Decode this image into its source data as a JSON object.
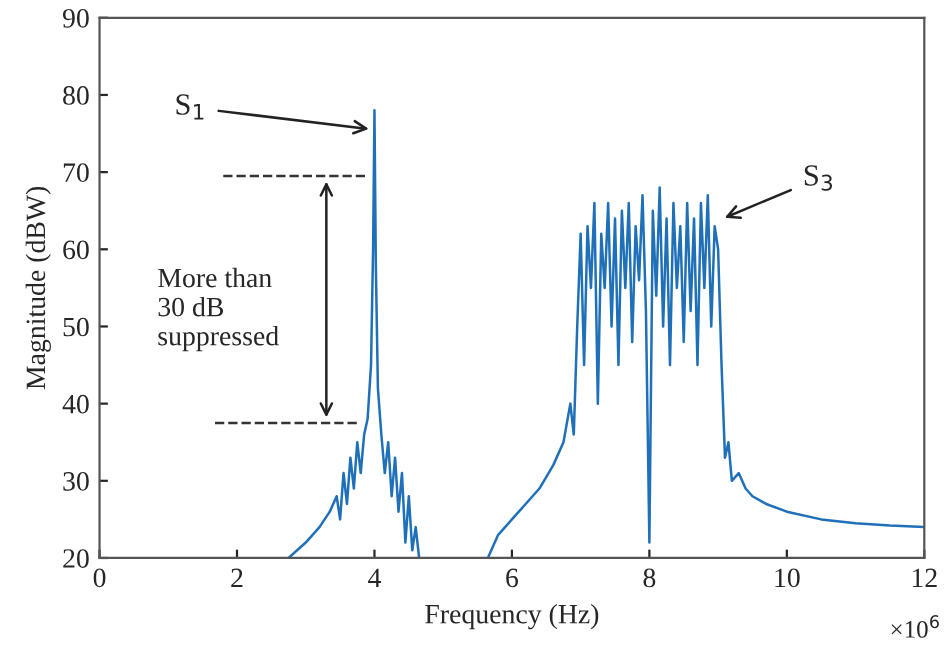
{
  "chart_data": {
    "type": "line",
    "xlabel": "Frequency (Hz)",
    "ylabel": "Magnitude (dBW)",
    "xlim": [
      0,
      12
    ],
    "xticks": [
      0,
      2,
      4,
      6,
      8,
      10,
      12
    ],
    "ylim": [
      20,
      90
    ],
    "yticks": [
      20,
      30,
      40,
      50,
      60,
      70,
      80,
      90
    ],
    "grid": false,
    "series": [
      {
        "color": "#1f70b8",
        "x": [
          2.75,
          3.0,
          3.2,
          3.35,
          3.45,
          3.5,
          3.55,
          3.6,
          3.65,
          3.7,
          3.75,
          3.8,
          3.85,
          3.9,
          3.95,
          3.98,
          4.0,
          4.02,
          4.05,
          4.1,
          4.15,
          4.2,
          4.25,
          4.3,
          4.35,
          4.4,
          4.45,
          4.5,
          4.55,
          4.6,
          4.65,
          5.0,
          5.65,
          5.8,
          6.0,
          6.2,
          6.4,
          6.6,
          6.75,
          6.85,
          6.9,
          6.95,
          7.0,
          7.05,
          7.1,
          7.15,
          7.2,
          7.25,
          7.3,
          7.35,
          7.4,
          7.45,
          7.5,
          7.55,
          7.6,
          7.65,
          7.7,
          7.75,
          7.8,
          7.85,
          7.9,
          7.95,
          8.0,
          8.05,
          8.1,
          8.15,
          8.2,
          8.25,
          8.3,
          8.35,
          8.4,
          8.45,
          8.5,
          8.55,
          8.6,
          8.65,
          8.7,
          8.75,
          8.8,
          8.85,
          8.9,
          8.95,
          9.0,
          9.05,
          9.1,
          9.15,
          9.2,
          9.3,
          9.4,
          9.5,
          9.7,
          10.0,
          10.5,
          11.0,
          11.5,
          12.0
        ],
        "values": [
          20,
          22,
          24,
          26,
          28,
          25,
          31,
          27,
          33,
          29,
          35,
          31,
          36,
          38,
          45,
          60,
          78,
          58,
          42,
          36,
          31,
          35,
          28,
          33,
          26,
          31,
          22,
          28,
          21,
          24,
          20,
          null,
          20,
          23,
          25,
          27,
          29,
          32,
          35,
          40,
          36,
          50,
          62,
          45,
          63,
          55,
          66,
          40,
          62,
          55,
          66,
          50,
          64,
          45,
          65,
          55,
          66,
          48,
          63,
          56,
          67,
          52,
          22,
          65,
          54,
          68,
          50,
          64,
          45,
          66,
          55,
          63,
          48,
          66,
          52,
          64,
          45,
          66,
          55,
          67,
          50,
          63,
          60,
          45,
          33,
          35,
          30,
          31,
          29,
          28,
          27,
          26,
          25,
          24.5,
          24.2,
          24
        ]
      }
    ],
    "ref_lines": [
      {
        "axis": "y",
        "value": 69.5,
        "color": "#333333",
        "line_style": "dashed"
      },
      {
        "axis": "y",
        "value": 37.5,
        "color": "#333333",
        "line_style": "dashed"
      }
    ],
    "annotations": [
      {
        "text": "S$_{1}$",
        "x": 4.0,
        "y": 75.5
      },
      {
        "text": "S$_{3}$",
        "x": 9.02,
        "y": 63.8
      },
      "More than\n30 dB\nsuppressed",
      "×10$^{6}$"
    ]
  }
}
